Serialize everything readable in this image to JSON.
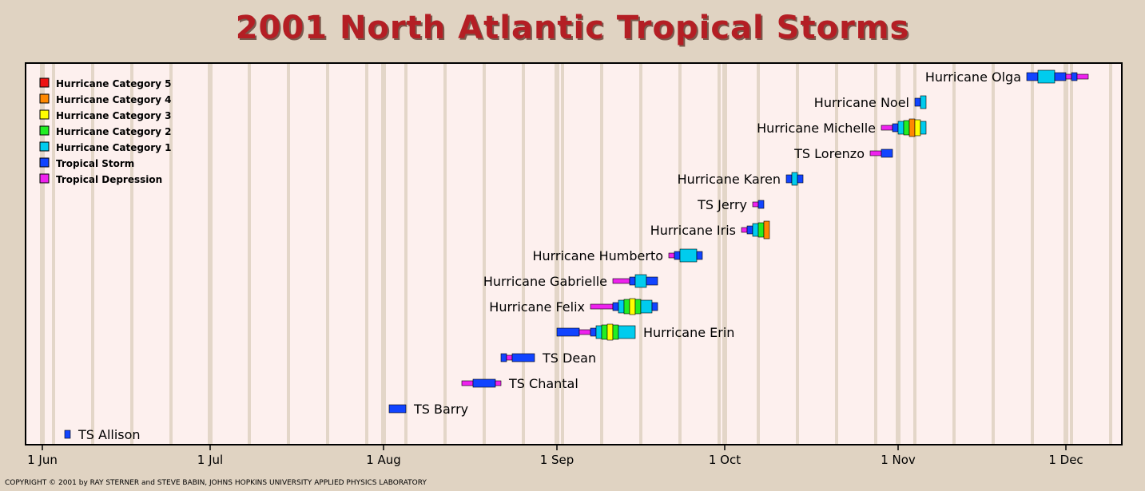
{
  "page": {
    "title": "2001 North Atlantic Tropical Storms",
    "copyright": "COPYRIGHT © 2001 by RAY STERNER and STEVE BABIN, JOHNS HOPKINS UNIVERSITY APPLIED PHYSICS LABORATORY"
  },
  "colors": {
    "background": "#e0d3c2",
    "plot_background": "#fdf0ee",
    "week_stripe": "#e3d6c8",
    "title": "#b41e24",
    "cat5": "#ee1111",
    "cat4": "#ff8800",
    "cat3": "#ffff00",
    "cat2": "#22ee22",
    "cat1": "#00ccee",
    "tropical_storm": "#1144ff",
    "tropical_depression": "#ee22ee"
  },
  "chart_data": {
    "type": "timeline",
    "title": "2001 North Atlantic Tropical Storms",
    "x_axis": {
      "type": "date",
      "range": [
        "2001-05-29",
        "2001-12-31"
      ],
      "ticks": [
        {
          "date": "2001-06-01",
          "label": "1 Jun"
        },
        {
          "date": "2001-07-01",
          "label": "1 Jul"
        },
        {
          "date": "2001-08-01",
          "label": "1 Aug"
        },
        {
          "date": "2001-09-01",
          "label": "1 Sep"
        },
        {
          "date": "2001-10-01",
          "label": "1 Oct"
        },
        {
          "date": "2001-11-01",
          "label": "1 Nov"
        },
        {
          "date": "2001-12-01",
          "label": "1 Dec"
        }
      ]
    },
    "grid": true,
    "legend": {
      "placement": "top-left",
      "entries": [
        {
          "key": "5",
          "label": "Hurricane Category 5"
        },
        {
          "key": "4",
          "label": "Hurricane Category 4"
        },
        {
          "key": "3",
          "label": "Hurricane Category 3"
        },
        {
          "key": "2",
          "label": "Hurricane Category 2"
        },
        {
          "key": "1",
          "label": "Hurricane Category 1"
        },
        {
          "key": "TS",
          "label": "Tropical Storm"
        },
        {
          "key": "TD",
          "label": "Tropical Depression"
        }
      ]
    },
    "storms": [
      {
        "name": "TS Allison",
        "label_side": "right",
        "segments": [
          [
            "2001-06-05",
            "2001-06-06",
            "TS"
          ]
        ]
      },
      {
        "name": "TS Barry",
        "label_side": "right",
        "segments": [
          [
            "2001-08-02",
            "2001-08-05",
            "TS"
          ]
        ]
      },
      {
        "name": "TS Chantal",
        "label_side": "right",
        "segments": [
          [
            "2001-08-15",
            "2001-08-17",
            "TD"
          ],
          [
            "2001-08-17",
            "2001-08-21",
            "TS"
          ],
          [
            "2001-08-21",
            "2001-08-22",
            "TD"
          ]
        ]
      },
      {
        "name": "TS Dean",
        "label_side": "right",
        "segments": [
          [
            "2001-08-22",
            "2001-08-23",
            "TS"
          ],
          [
            "2001-08-23",
            "2001-08-24",
            "TD"
          ],
          [
            "2001-08-24",
            "2001-08-28",
            "TS"
          ]
        ]
      },
      {
        "name": "Hurricane Erin",
        "label_side": "right",
        "segments": [
          [
            "2001-09-01",
            "2001-09-05",
            "TS"
          ],
          [
            "2001-09-05",
            "2001-09-07",
            "TD"
          ],
          [
            "2001-09-07",
            "2001-09-08",
            "TS"
          ],
          [
            "2001-09-08",
            "2001-09-09",
            "1"
          ],
          [
            "2001-09-09",
            "2001-09-10",
            "2"
          ],
          [
            "2001-09-10",
            "2001-09-11",
            "3"
          ],
          [
            "2001-09-11",
            "2001-09-12",
            "2"
          ],
          [
            "2001-09-12",
            "2001-09-15",
            "1"
          ]
        ]
      },
      {
        "name": "Hurricane Felix",
        "label_side": "left",
        "segments": [
          [
            "2001-09-07",
            "2001-09-11",
            "TD"
          ],
          [
            "2001-09-11",
            "2001-09-12",
            "TS"
          ],
          [
            "2001-09-12",
            "2001-09-13",
            "1"
          ],
          [
            "2001-09-13",
            "2001-09-14",
            "2"
          ],
          [
            "2001-09-14",
            "2001-09-15",
            "3"
          ],
          [
            "2001-09-15",
            "2001-09-16",
            "2"
          ],
          [
            "2001-09-16",
            "2001-09-18",
            "1"
          ],
          [
            "2001-09-18",
            "2001-09-19",
            "TS"
          ]
        ]
      },
      {
        "name": "Hurricane Gabrielle",
        "label_side": "left",
        "segments": [
          [
            "2001-09-11",
            "2001-09-14",
            "TD"
          ],
          [
            "2001-09-14",
            "2001-09-15",
            "TS"
          ],
          [
            "2001-09-15",
            "2001-09-17",
            "1"
          ],
          [
            "2001-09-17",
            "2001-09-19",
            "TS"
          ]
        ]
      },
      {
        "name": "Hurricane Humberto",
        "label_side": "left",
        "segments": [
          [
            "2001-09-21",
            "2001-09-22",
            "TD"
          ],
          [
            "2001-09-22",
            "2001-09-23",
            "TS"
          ],
          [
            "2001-09-23",
            "2001-09-26",
            "1"
          ],
          [
            "2001-09-26",
            "2001-09-27",
            "TS"
          ]
        ]
      },
      {
        "name": "Hurricane Iris",
        "label_side": "left",
        "segments": [
          [
            "2001-10-04",
            "2001-10-05",
            "TD"
          ],
          [
            "2001-10-05",
            "2001-10-06",
            "TS"
          ],
          [
            "2001-10-06",
            "2001-10-07",
            "1"
          ],
          [
            "2001-10-07",
            "2001-10-08",
            "2"
          ],
          [
            "2001-10-08",
            "2001-10-09",
            "4"
          ]
        ]
      },
      {
        "name": "TS Jerry",
        "label_side": "left",
        "segments": [
          [
            "2001-10-06",
            "2001-10-07",
            "TD"
          ],
          [
            "2001-10-07",
            "2001-10-08",
            "TS"
          ]
        ]
      },
      {
        "name": "Hurricane Karen",
        "label_side": "left",
        "segments": [
          [
            "2001-10-12",
            "2001-10-13",
            "TS"
          ],
          [
            "2001-10-13",
            "2001-10-14",
            "1"
          ],
          [
            "2001-10-14",
            "2001-10-15",
            "TS"
          ]
        ]
      },
      {
        "name": "TS Lorenzo",
        "label_side": "left",
        "segments": [
          [
            "2001-10-27",
            "2001-10-29",
            "TD"
          ],
          [
            "2001-10-29",
            "2001-10-31",
            "TS"
          ]
        ]
      },
      {
        "name": "Hurricane Michelle",
        "label_side": "left",
        "segments": [
          [
            "2001-10-29",
            "2001-10-31",
            "TD"
          ],
          [
            "2001-10-31",
            "2001-11-01",
            "TS"
          ],
          [
            "2001-11-01",
            "2001-11-02",
            "1"
          ],
          [
            "2001-11-02",
            "2001-11-03",
            "2"
          ],
          [
            "2001-11-03",
            "2001-11-04",
            "4"
          ],
          [
            "2001-11-04",
            "2001-11-05",
            "3"
          ],
          [
            "2001-11-05",
            "2001-11-06",
            "1"
          ]
        ]
      },
      {
        "name": "Hurricane Noel",
        "label_side": "left",
        "segments": [
          [
            "2001-11-04",
            "2001-11-05",
            "TS"
          ],
          [
            "2001-11-05",
            "2001-11-06",
            "1"
          ]
        ]
      },
      {
        "name": "Hurricane Olga",
        "label_side": "left",
        "segments": [
          [
            "2001-11-24",
            "2001-11-26",
            "TS"
          ],
          [
            "2001-11-26",
            "2001-11-29",
            "1"
          ],
          [
            "2001-11-29",
            "2001-12-01",
            "TS"
          ],
          [
            "2001-12-01",
            "2001-12-02",
            "TD"
          ],
          [
            "2001-12-02",
            "2001-12-03",
            "TS"
          ],
          [
            "2001-12-03",
            "2001-12-05",
            "TD"
          ]
        ]
      }
    ]
  }
}
